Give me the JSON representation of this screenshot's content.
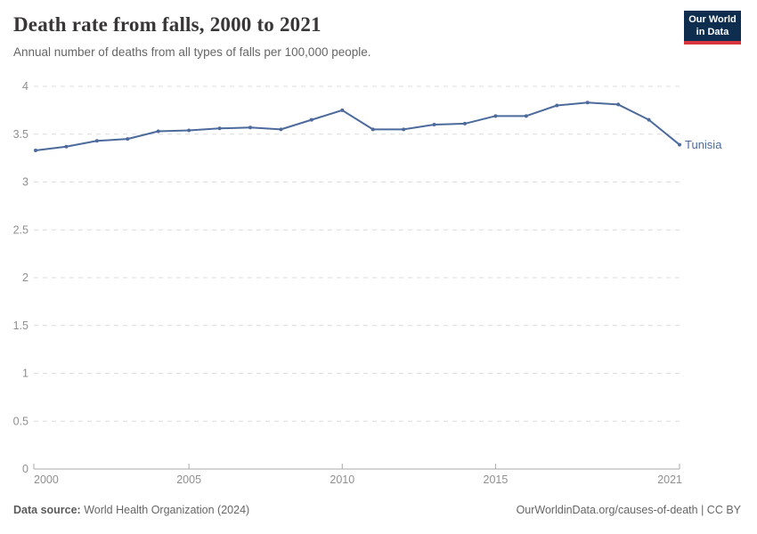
{
  "header": {
    "title": "Death rate from falls, 2000 to 2021",
    "subtitle": "Annual number of deaths from all types of falls per 100,000 people.",
    "logo": {
      "line1": "Our World",
      "line2": "in Data"
    }
  },
  "chart_data": {
    "type": "line",
    "x": [
      2000,
      2001,
      2002,
      2003,
      2004,
      2005,
      2006,
      2007,
      2008,
      2009,
      2010,
      2011,
      2012,
      2013,
      2014,
      2015,
      2016,
      2017,
      2018,
      2019,
      2020,
      2021
    ],
    "series": [
      {
        "name": "Tunisia",
        "color": "#4c6a9c",
        "values": [
          3.33,
          3.37,
          3.43,
          3.45,
          3.53,
          3.54,
          3.56,
          3.57,
          3.55,
          3.65,
          3.75,
          3.55,
          3.55,
          3.6,
          3.61,
          3.69,
          3.69,
          3.8,
          3.83,
          3.81,
          3.65,
          3.39
        ]
      }
    ],
    "title": "Death rate from falls, 2000 to 2021",
    "xlabel": "",
    "ylabel": "",
    "xlim": [
      2000,
      2021
    ],
    "ylim": [
      0,
      4
    ],
    "x_ticks": [
      2000,
      2005,
      2010,
      2015,
      2021
    ],
    "y_ticks": [
      0,
      0.5,
      1,
      1.5,
      2,
      2.5,
      3,
      3.5,
      4
    ],
    "y_tick_labels": [
      "0",
      "0.5",
      "1",
      "1.5",
      "2",
      "2.5",
      "3",
      "3.5",
      "4"
    ],
    "grid": "dashed horizontal gridlines",
    "legend_position": "end-of-line label",
    "colors": {
      "line": "#4c6a9c",
      "grid": "#dcdcdc",
      "axis": "#a9a9a9",
      "tick_text": "#8f8f8f"
    }
  },
  "footer": {
    "datasource_label": "Data source:",
    "datasource_value": " World Health Organization (2024)",
    "right_text": "OurWorldinData.org/causes-of-death | CC BY"
  }
}
